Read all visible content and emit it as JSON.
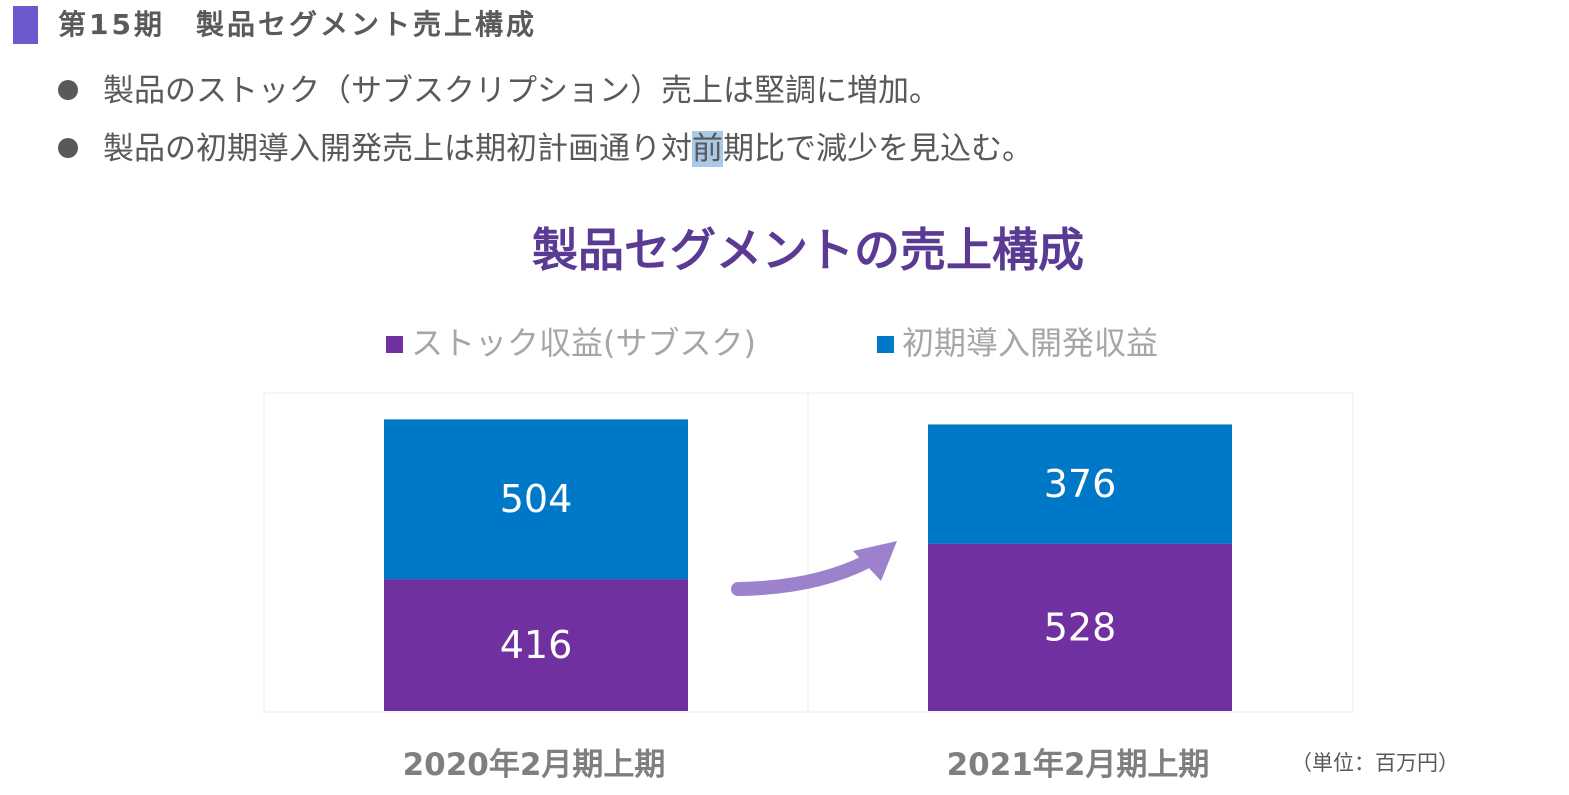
{
  "header": {
    "title": "第15期　製品セグメント売上構成"
  },
  "bullets": [
    {
      "text": "製品のストック（サブスクリプション）売上は堅調に増加。",
      "highlight": ""
    },
    {
      "text_before": "製品の初期導入開発売上は期初計画通り対",
      "highlight": "前",
      "text_after": "期比で減少を見込む。"
    }
  ],
  "chart_data": {
    "type": "bar",
    "stacked": true,
    "title": "製品セグメントの売上構成",
    "categories": [
      "2020年2月期上期",
      "2021年2月期上期"
    ],
    "series": [
      {
        "name": "ストック収益(サブスク)",
        "values": [
          416,
          528
        ],
        "color": "#7030a0"
      },
      {
        "name": "初期導入開発収益",
        "values": [
          504,
          376
        ],
        "color": "#0078c8"
      }
    ],
    "legend": "top",
    "unit_note": "（単位：百万円）",
    "grid": false,
    "annotation": "increase-arrow"
  },
  "colors": {
    "accent": "#6a5acd",
    "title": "#5b3a94",
    "arrow": "#9c82cc",
    "text": "#595959",
    "axis_label": "#7f7f7f",
    "legend_text": "#a6a6a6"
  }
}
